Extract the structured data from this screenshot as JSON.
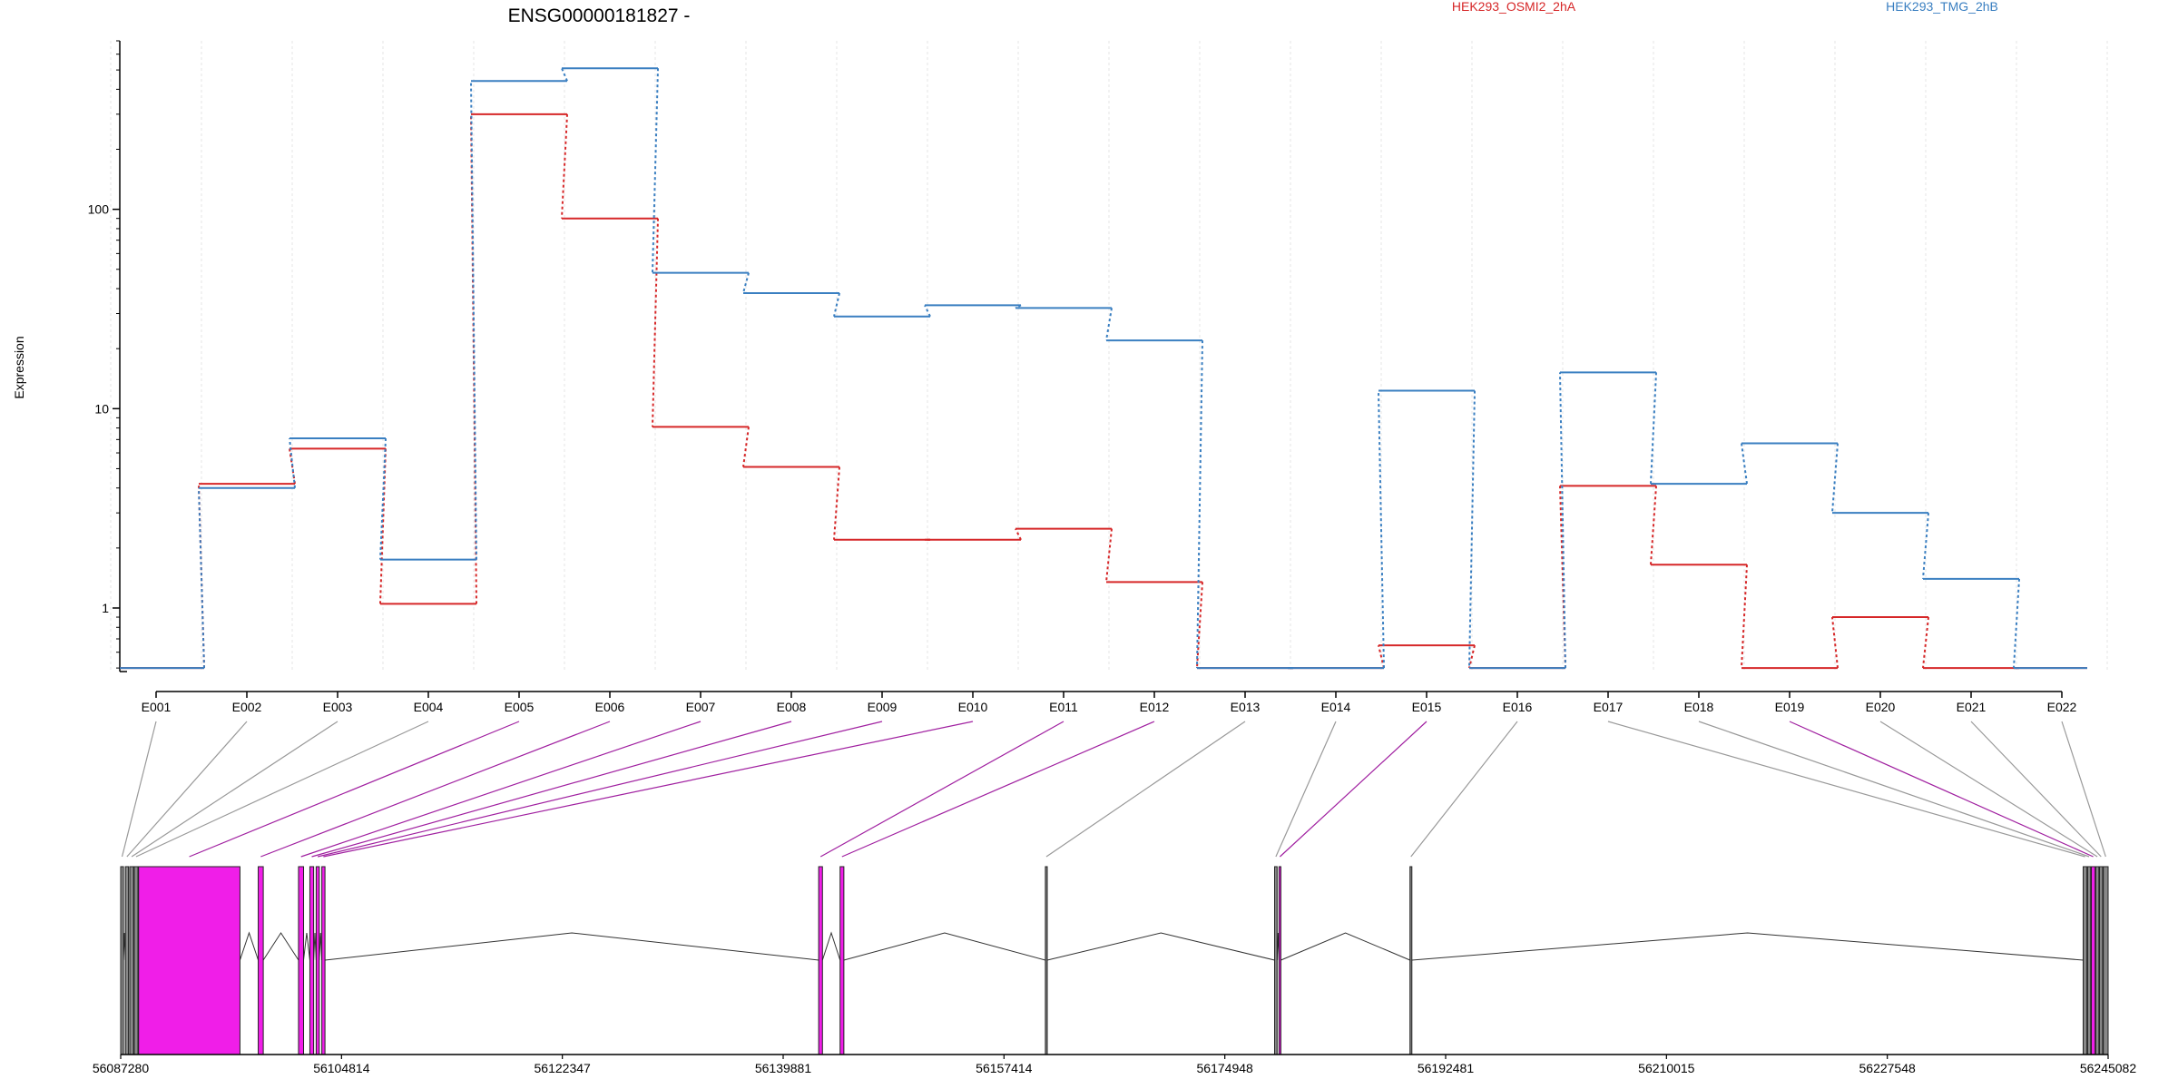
{
  "chart_data": {
    "type": "line",
    "title": "ENSG00000181827 -",
    "ylabel": "Expression",
    "y_scale": "log",
    "y_ticks": [
      {
        "value": 1,
        "label": "1"
      },
      {
        "value": 10,
        "label": "10"
      },
      {
        "value": 100,
        "label": "100"
      }
    ],
    "ylim": [
      0.48,
      700
    ],
    "categories": [
      "E001",
      "E002",
      "E003",
      "E004",
      "E005",
      "E006",
      "E007",
      "E008",
      "E009",
      "E010",
      "E011",
      "E012",
      "E013",
      "E014",
      "E015",
      "E016",
      "E017",
      "E018",
      "E019",
      "E020",
      "E021",
      "E022"
    ],
    "series": [
      {
        "name": "HEK293_OSMI2_2hA",
        "color": "#d62728",
        "values": [
          0.5,
          4.2,
          6.3,
          1.05,
          300,
          90,
          8.1,
          5.1,
          2.2,
          2.2,
          2.5,
          1.35,
          0.5,
          0.5,
          0.65,
          0.5,
          4.1,
          1.65,
          0.5,
          0.9,
          0.5,
          0.5
        ]
      },
      {
        "name": "HEK293_TMG_2hB",
        "color": "#3a7fc1",
        "values": [
          0.5,
          4.0,
          7.1,
          1.75,
          440,
          510,
          48,
          38,
          29,
          33,
          32,
          22,
          0.5,
          0.5,
          12.3,
          0.5,
          15.2,
          4.2,
          6.7,
          3.0,
          1.4,
          0.5
        ]
      }
    ],
    "genomic_axis": {
      "min": 56087280,
      "max": 56245082,
      "ticks": [
        "56087280",
        "56104814",
        "56122347",
        "56139881",
        "56157414",
        "56174948",
        "56192481",
        "56210015",
        "56227548",
        "56245082"
      ]
    },
    "exons": [
      {
        "id": "E001",
        "start": 56087280,
        "end": 56087500,
        "color": "#888888"
      },
      {
        "id": "E002",
        "start": 56087650,
        "end": 56087900,
        "color": "#888888"
      },
      {
        "id": "E003",
        "start": 56088000,
        "end": 56088300,
        "color": "#888888"
      },
      {
        "id": "E004",
        "start": 56088350,
        "end": 56088650,
        "color": "#888888"
      },
      {
        "id": "E005",
        "start": 56088700,
        "end": 56096750,
        "color": "#f01ee8"
      },
      {
        "id": "E006",
        "start": 56098200,
        "end": 56098600,
        "color": "#f01ee8"
      },
      {
        "id": "E007",
        "start": 56101400,
        "end": 56101800,
        "color": "#f01ee8"
      },
      {
        "id": "E008",
        "start": 56102300,
        "end": 56102600,
        "color": "#f01ee8"
      },
      {
        "id": "E009",
        "start": 56102800,
        "end": 56103050,
        "color": "#f01ee8"
      },
      {
        "id": "E010",
        "start": 56103250,
        "end": 56103500,
        "color": "#f01ee8"
      },
      {
        "id": "E011",
        "start": 56142700,
        "end": 56143000,
        "color": "#f01ee8"
      },
      {
        "id": "E012",
        "start": 56144400,
        "end": 56144700,
        "color": "#f01ee8"
      },
      {
        "id": "E013",
        "start": 56160700,
        "end": 56160850,
        "color": "#888888"
      },
      {
        "id": "E014",
        "start": 56178900,
        "end": 56179100,
        "color": "#888888"
      },
      {
        "id": "E015",
        "start": 56179250,
        "end": 56179400,
        "color": "#f01ee8"
      },
      {
        "id": "E016",
        "start": 56189650,
        "end": 56189800,
        "color": "#888888"
      },
      {
        "id": "E017",
        "start": 56243100,
        "end": 56243400,
        "color": "#888888"
      },
      {
        "id": "E018",
        "start": 56243450,
        "end": 56243700,
        "color": "#888888"
      },
      {
        "id": "E019",
        "start": 56243750,
        "end": 56244050,
        "color": "#f01ee8"
      },
      {
        "id": "E020",
        "start": 56244100,
        "end": 56244350,
        "color": "#888888"
      },
      {
        "id": "E021",
        "start": 56244400,
        "end": 56244650,
        "color": "#888888"
      },
      {
        "id": "E022",
        "start": 56244700,
        "end": 56245082,
        "color": "#888888"
      }
    ],
    "exon_links_color_default": "#999999",
    "exon_links_color_highlight": "#a020a0",
    "highlighted_exons": [
      "E005",
      "E006",
      "E007",
      "E008",
      "E009",
      "E010",
      "E011",
      "E012",
      "E015",
      "E019"
    ]
  }
}
